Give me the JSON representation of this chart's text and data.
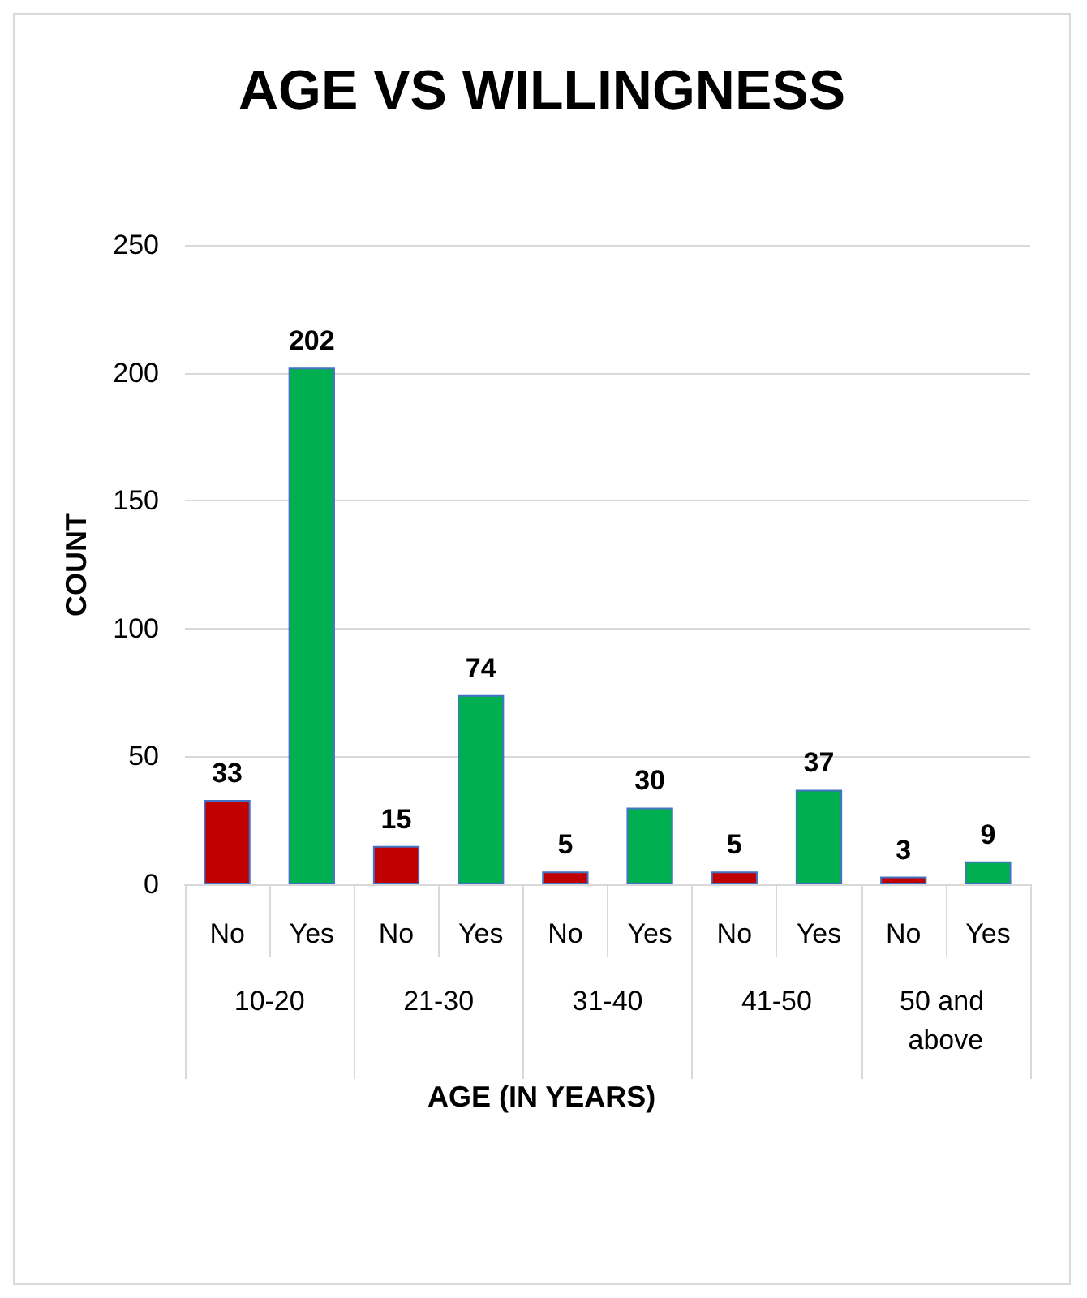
{
  "chart_data": {
    "type": "bar",
    "title": "AGE VS WILLINGNESS",
    "xlabel": "AGE (IN YEARS)",
    "ylabel": "COUNT",
    "categories": [
      "No",
      "Yes",
      "No",
      "Yes",
      "No",
      "Yes",
      "No",
      "Yes",
      "No",
      "Yes"
    ],
    "values": [
      33,
      202,
      15,
      74,
      5,
      30,
      5,
      37,
      3,
      9
    ],
    "colors": [
      "#c00000",
      "#00b050",
      "#c00000",
      "#00b050",
      "#c00000",
      "#00b050",
      "#c00000",
      "#00b050",
      "#c00000",
      "#00b050"
    ],
    "annotations": [
      "10-20",
      "21-30",
      "31-40",
      "41-50",
      "50 and above"
    ],
    "ylim": [
      0,
      250
    ],
    "yticks": [
      0,
      50,
      100,
      150,
      200,
      250
    ],
    "grid": "y",
    "data_labels": true
  }
}
